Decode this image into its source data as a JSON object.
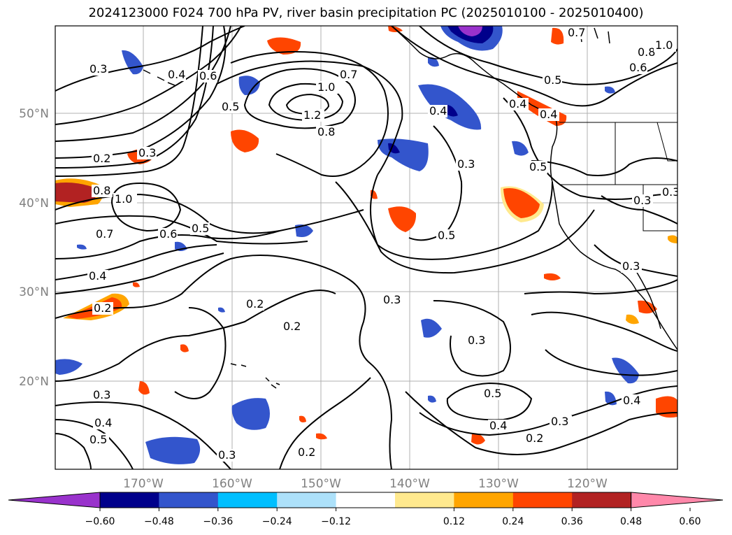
{
  "title": "2024123000 F024 700 hPa PV, river basin precipitation PC (2025010100 - 2025010400)",
  "lat_labels": [
    "50°N",
    "40°N",
    "30°N",
    "20°N"
  ],
  "lon_labels": [
    "170°W",
    "160°W",
    "150°W",
    "140°W",
    "130°W",
    "120°W"
  ],
  "contour_labels": [
    "0.3",
    "0.4",
    "0.6",
    "0.5",
    "0.7",
    "1.0",
    "1.2",
    "0.8",
    "0.4",
    "0.3",
    "0.5",
    "0.5",
    "0.7",
    "0.8",
    "0.6",
    "1.0",
    "0.2",
    "0.3",
    "0.8",
    "1.0",
    "0.7",
    "0.6",
    "0.5",
    "0.4",
    "0.2",
    "0.2",
    "0.2",
    "0.3",
    "0.5",
    "0.3",
    "0.3",
    "0.3",
    "0.5",
    "0.4",
    "0.3",
    "0.2",
    "0.4",
    "0.3",
    "0.4",
    "0.5",
    "0.3",
    "0.2",
    "0.4",
    "0.4",
    "0.3"
  ],
  "colorbar": {
    "ticks": [
      "−0.60",
      "−0.48",
      "−0.36",
      "−0.24",
      "−0.12",
      "0.12",
      "0.24",
      "0.36",
      "0.48",
      "0.60"
    ],
    "colors": [
      "#9932CC",
      "#00008B",
      "#3355CC",
      "#00BFFF",
      "#ADE1FA",
      "#FFFFFF",
      "#FFE98E",
      "#FFA500",
      "#FF4500",
      "#B22222",
      "#FF88AA"
    ]
  }
}
